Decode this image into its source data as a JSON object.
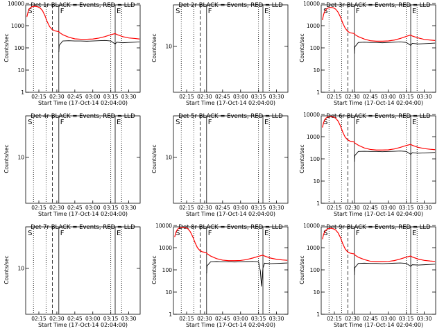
{
  "colors": {
    "events": "#000000",
    "lld": "#ff0000",
    "background": "#ffffff",
    "text": "#000000"
  },
  "common": {
    "xlabel": "Start Time (17-Oct-14 02:04:00)",
    "ylabel": "Counts/sec",
    "xticks": [
      "02:15",
      "02:30",
      "02:45",
      "03:00",
      "03:15",
      "03:30"
    ],
    "yticks_full": [
      "1",
      "10",
      "100",
      "1000",
      "10000"
    ],
    "yticks_short": [
      "10"
    ],
    "markers": [
      {
        "label": "S",
        "time": "02:04:40"
      },
      {
        "label": "F",
        "time": "02:31:40"
      },
      {
        "label": "E",
        "time": "03:18:40"
      }
    ],
    "dotted_line_times": [
      "02:10:30",
      "02:21:00",
      "03:15:00",
      "03:24:00"
    ],
    "dashed_line_times": [
      "02:26:20"
    ],
    "solid_line_times": [
      "02:31:40",
      "03:18:40"
    ]
  },
  "panels": [
    {
      "title": "Det 1r BLACK = Events, RED = LLD",
      "active": true,
      "x": [
        "02:05",
        "02:06",
        "02:07",
        "02:08",
        "02:09",
        "02:10",
        "02:12",
        "02:14",
        "02:16",
        "02:18",
        "02:20",
        "02:22",
        "02:24",
        "02:26",
        "02:27",
        "02:28",
        "02:30",
        "02:31:40",
        "02:32",
        "02:35",
        "02:40",
        "02:45",
        "02:50",
        "02:55",
        "03:00",
        "03:05",
        "03:10",
        "03:15",
        "03:18:40",
        "03:20",
        "03:25",
        "03:30",
        "03:35",
        "03:39"
      ],
      "lld": [
        2500,
        4200,
        5600,
        6500,
        7000,
        7300,
        7500,
        7100,
        6300,
        4800,
        2900,
        1500,
        900,
        680,
        640,
        590,
        560,
        540,
        500,
        390,
        300,
        255,
        245,
        245,
        250,
        275,
        320,
        390,
        440,
        400,
        320,
        280,
        265,
        250
      ],
      "events_x": [
        "02:31:40",
        "02:32",
        "02:35",
        "02:40",
        "02:45",
        "02:50",
        "02:55",
        "03:00",
        "03:05",
        "03:10",
        "03:15",
        "03:18:40",
        "03:20",
        "03:25",
        "03:30",
        "03:35",
        "03:39"
      ],
      "events": [
        65,
        130,
        205,
        210,
        205,
        205,
        200,
        205,
        210,
        215,
        205,
        150,
        180,
        170,
        175,
        180,
        185
      ]
    },
    {
      "title": "Det 2r BLACK = Events, RED = LLD",
      "active": false
    },
    {
      "title": "Det 3r BLACK = Events, RED = LLD",
      "active": true,
      "x": [
        "02:05",
        "02:06",
        "02:07",
        "02:08",
        "02:09",
        "02:10",
        "02:12",
        "02:14",
        "02:16",
        "02:18",
        "02:20",
        "02:22",
        "02:24",
        "02:26",
        "02:27",
        "02:28",
        "02:30",
        "02:31:40",
        "02:32",
        "02:35",
        "02:40",
        "02:45",
        "02:50",
        "02:55",
        "03:00",
        "03:05",
        "03:10",
        "03:15",
        "03:18:40",
        "03:20",
        "03:25",
        "03:30",
        "03:35",
        "03:39"
      ],
      "lld": [
        1800,
        3200,
        4400,
        5300,
        5900,
        6300,
        6700,
        6400,
        5600,
        4100,
        2500,
        1300,
        780,
        560,
        520,
        480,
        460,
        440,
        400,
        320,
        250,
        210,
        200,
        200,
        205,
        225,
        265,
        330,
        380,
        340,
        280,
        240,
        225,
        215
      ],
      "events_x": [
        "02:31:40",
        "02:32",
        "02:35",
        "02:40",
        "02:45",
        "02:50",
        "02:55",
        "03:00",
        "03:05",
        "03:10",
        "03:15",
        "03:18:40",
        "03:20",
        "03:25",
        "03:30",
        "03:35",
        "03:39"
      ],
      "events": [
        55,
        110,
        175,
        180,
        175,
        175,
        170,
        175,
        180,
        185,
        175,
        130,
        160,
        150,
        155,
        160,
        165
      ]
    },
    {
      "title": "Det 4r BLACK = Events, RED = LLD",
      "active": false
    },
    {
      "title": "Det 5r BLACK = Events, RED = LLD",
      "active": false
    },
    {
      "title": "Det 6r BLACK = Events, RED = LLD",
      "active": true,
      "x": [
        "02:05",
        "02:06",
        "02:07",
        "02:08",
        "02:09",
        "02:10",
        "02:12",
        "02:14",
        "02:16",
        "02:18",
        "02:20",
        "02:22",
        "02:24",
        "02:26",
        "02:27",
        "02:28",
        "02:30",
        "02:31:40",
        "02:32",
        "02:35",
        "02:40",
        "02:45",
        "02:50",
        "02:55",
        "03:00",
        "03:05",
        "03:10",
        "03:15",
        "03:18:40",
        "03:20",
        "03:25",
        "03:30",
        "03:35",
        "03:39"
      ],
      "lld": [
        2600,
        4300,
        5800,
        6800,
        7400,
        7800,
        8100,
        7700,
        6800,
        5100,
        3100,
        1600,
        950,
        720,
        680,
        630,
        600,
        570,
        520,
        410,
        310,
        265,
        250,
        250,
        255,
        280,
        330,
        400,
        450,
        410,
        330,
        290,
        270,
        260
      ],
      "events_x": [
        "02:31:40",
        "02:32",
        "02:35",
        "02:40",
        "02:45",
        "02:50",
        "02:55",
        "03:00",
        "03:05",
        "03:10",
        "03:15",
        "03:18:40",
        "03:20",
        "03:25",
        "03:30",
        "03:35",
        "03:39"
      ],
      "events": [
        75,
        140,
        215,
        220,
        215,
        215,
        210,
        215,
        220,
        225,
        215,
        160,
        190,
        180,
        185,
        190,
        195
      ]
    },
    {
      "title": "Det 7r BLACK = Events, RED = LLD",
      "active": false
    },
    {
      "title": "Det 8r BLACK = Events, RED = LLD",
      "active": true,
      "x": [
        "02:05",
        "02:06",
        "02:07",
        "02:08",
        "02:09",
        "02:10",
        "02:12",
        "02:14",
        "02:16",
        "02:18",
        "02:20",
        "02:22",
        "02:24",
        "02:26",
        "02:27",
        "02:28",
        "02:30",
        "02:31:40",
        "02:32",
        "02:35",
        "02:40",
        "02:45",
        "02:50",
        "02:55",
        "03:00",
        "03:05",
        "03:10",
        "03:15",
        "03:18:40",
        "03:20",
        "03:25",
        "03:30",
        "03:35",
        "03:39"
      ],
      "lld": [
        3000,
        4800,
        6200,
        7200,
        7800,
        8100,
        8400,
        8000,
        7100,
        5300,
        3200,
        1700,
        1000,
        750,
        700,
        650,
        620,
        590,
        540,
        420,
        320,
        275,
        260,
        260,
        265,
        290,
        340,
        410,
        460,
        420,
        340,
        300,
        280,
        270
      ],
      "events_x": [
        "02:31:40",
        "02:32",
        "02:35",
        "02:40",
        "02:45",
        "02:50",
        "02:55",
        "03:00",
        "03:05",
        "03:10",
        "03:15",
        "03:16:30",
        "03:17:30",
        "03:18:40",
        "03:20",
        "03:25",
        "03:30",
        "03:35",
        "03:39"
      ],
      "events": [
        70,
        150,
        230,
        235,
        230,
        230,
        225,
        230,
        235,
        240,
        230,
        90,
        18,
        120,
        200,
        190,
        195,
        200,
        205
      ]
    },
    {
      "title": "Det 9r BLACK = Events, RED = LLD",
      "active": true,
      "x": [
        "02:05",
        "02:06",
        "02:07",
        "02:08",
        "02:09",
        "02:10",
        "02:12",
        "02:14",
        "02:16",
        "02:18",
        "02:20",
        "02:22",
        "02:24",
        "02:26",
        "02:27",
        "02:28",
        "02:30",
        "02:31:40",
        "02:32",
        "02:35",
        "02:40",
        "02:45",
        "02:50",
        "02:55",
        "03:00",
        "03:05",
        "03:10",
        "03:15",
        "03:18:40",
        "03:20",
        "03:25",
        "03:30",
        "03:35",
        "03:39"
      ],
      "lld": [
        2400,
        4000,
        5300,
        6200,
        6800,
        7200,
        7500,
        7100,
        6300,
        4700,
        2900,
        1500,
        880,
        650,
        610,
        570,
        540,
        520,
        470,
        370,
        290,
        245,
        235,
        235,
        240,
        262,
        310,
        375,
        420,
        380,
        305,
        268,
        250,
        240
      ],
      "events_x": [
        "02:31:40",
        "02:32",
        "02:35",
        "02:40",
        "02:45",
        "02:50",
        "02:55",
        "03:00",
        "03:05",
        "03:10",
        "03:15",
        "03:18:40",
        "03:20",
        "03:25",
        "03:30",
        "03:35",
        "03:39"
      ],
      "events": [
        60,
        125,
        195,
        200,
        195,
        195,
        190,
        195,
        200,
        205,
        195,
        145,
        170,
        165,
        170,
        175,
        180
      ]
    }
  ]
}
